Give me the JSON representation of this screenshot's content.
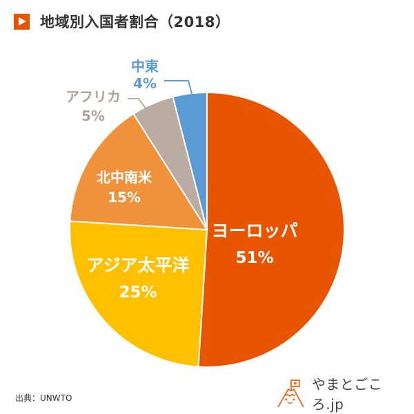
{
  "header": {
    "title": "地域別入国者割合（2018）",
    "marker_icon": "play-triangle-icon",
    "accent_color": "#E85500"
  },
  "chart_data": {
    "type": "pie",
    "title": "地域別入国者割合（2018）",
    "start_angle_deg": 0,
    "direction": "clockwise",
    "slices": [
      {
        "label": "ヨーロッパ",
        "value": 51,
        "value_label": "51%",
        "color": "#E85500",
        "label_color": "#FFFFFF",
        "label_position": "inside"
      },
      {
        "label": "アジア太平洋",
        "value": 25,
        "value_label": "25%",
        "color": "#FFC000",
        "label_color": "#FFFFFF",
        "label_position": "inside"
      },
      {
        "label": "北中南米",
        "value": 15,
        "value_label": "15%",
        "color": "#F0923B",
        "label_color": "#FFFFFF",
        "label_position": "inside"
      },
      {
        "label": "アフリカ",
        "value": 5,
        "value_label": "5%",
        "color": "#BBACA3",
        "label_color": "#B0A39B",
        "label_position": "outside"
      },
      {
        "label": "中東",
        "value": 4,
        "value_label": "4%",
        "color": "#5B9BD5",
        "label_color": "#5B9BD5",
        "label_position": "outside"
      }
    ]
  },
  "footer": {
    "source": "出典：UNWTO",
    "brand": "やまとごころ.jp",
    "brand_icon": "mountain-mascot-icon",
    "brand_color": "#E8742A"
  }
}
